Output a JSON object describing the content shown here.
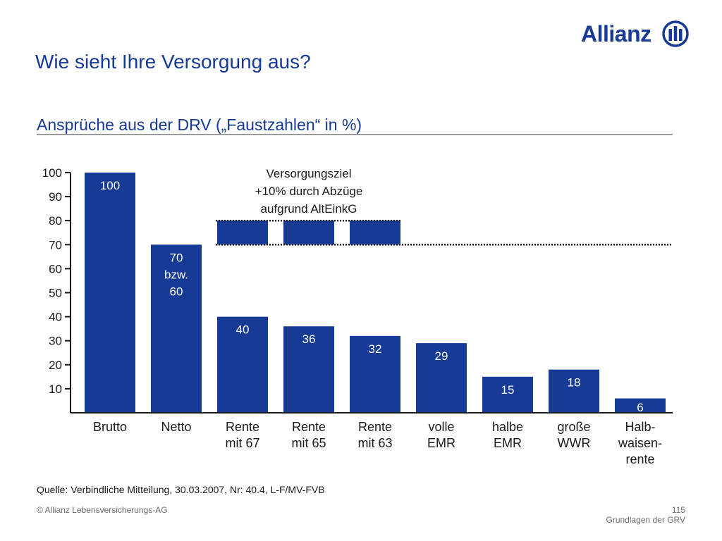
{
  "header": {
    "brand": "Allianz",
    "title": "Wie sieht Ihre Versorgung aus?",
    "subtitle": "Ansprüche aus der DRV („Faustzahlen“ in %)"
  },
  "chart_data": {
    "type": "bar",
    "ylim": [
      0,
      100
    ],
    "yticks": [
      10,
      20,
      30,
      40,
      50,
      60,
      70,
      80,
      90,
      100
    ],
    "grid": false,
    "bar_color": "#173a96",
    "categories": [
      [
        "Brutto"
      ],
      [
        "Netto"
      ],
      [
        "Rente",
        "mit 67"
      ],
      [
        "Rente",
        "mit 65"
      ],
      [
        "Rente",
        "mit 63"
      ],
      [
        "volle",
        "EMR"
      ],
      [
        "halbe",
        "EMR"
      ],
      [
        "große",
        "WWR"
      ],
      [
        "Halb-",
        "waisen-",
        "rente"
      ]
    ],
    "values": [
      100,
      70,
      40,
      36,
      32,
      29,
      15,
      18,
      6
    ],
    "data_labels": [
      [
        "100"
      ],
      [
        "70",
        "bzw.",
        "60"
      ],
      [
        "40"
      ],
      [
        "36"
      ],
      [
        "32"
      ],
      [
        "29"
      ],
      [
        "15"
      ],
      [
        "18"
      ],
      [
        "6"
      ]
    ],
    "reference_lines": [
      70,
      80
    ],
    "target_range": {
      "from": 70,
      "to": 80,
      "categories": [
        2,
        3,
        4
      ]
    },
    "annotation": [
      "Versorgungsziel",
      "+10% durch Abzüge",
      "aufgrund AltEinkG"
    ]
  },
  "footer": {
    "source": "Quelle: Verbindliche Mitteilung, 30.03.2007, Nr: 40.4, L-F/MV-FVB",
    "copyright": "© Allianz Lebensversicherungs-AG",
    "page_number": "115",
    "section": "Grundlagen der GRV"
  }
}
